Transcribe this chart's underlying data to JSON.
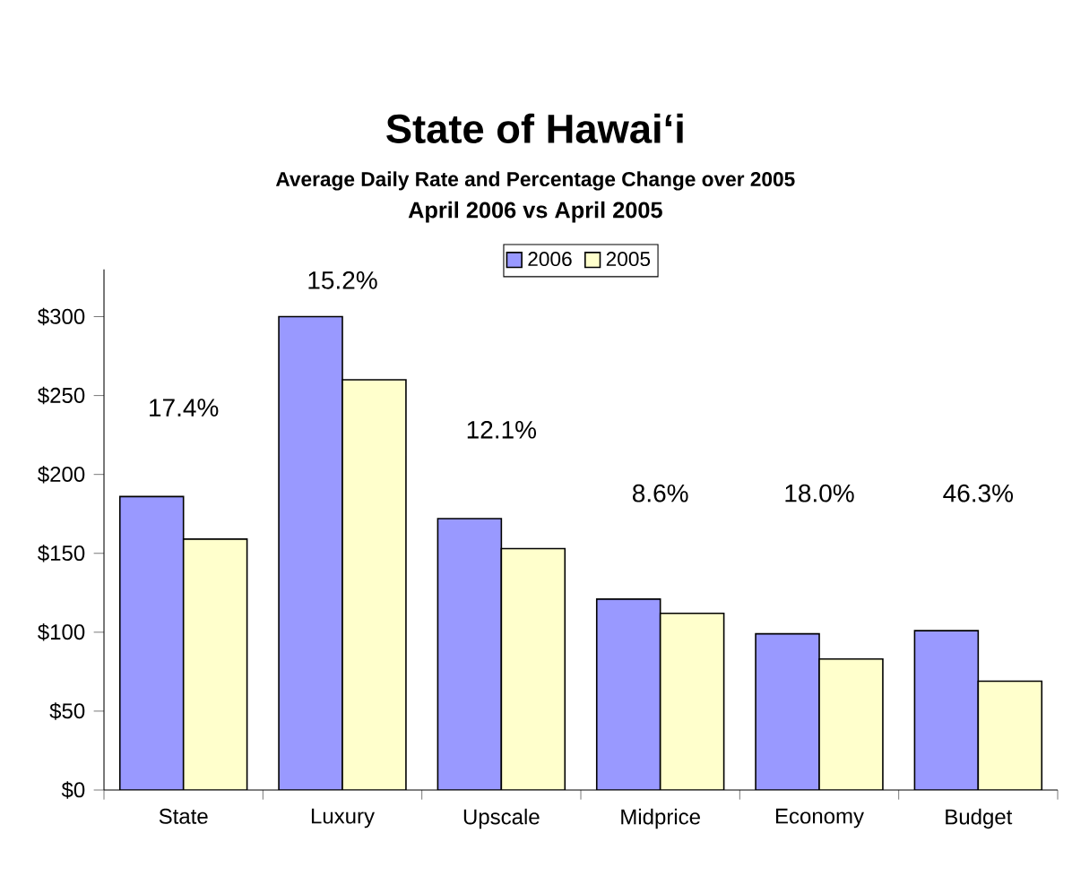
{
  "chart_data": {
    "type": "bar",
    "title": "State of Hawai‘i",
    "subtitle": "Average Daily Rate and Percentage Change over 2005",
    "categories": [
      "State",
      "Luxury",
      "Upscale",
      "Midprice",
      "Economy",
      "Budget"
    ],
    "series": [
      {
        "name": "2006",
        "color": "#9999ff",
        "values": [
          186,
          300,
          172,
          121,
          99,
          101
        ]
      },
      {
        "name": "2005",
        "color": "#ffffcc",
        "values": [
          159,
          260,
          153,
          112,
          83,
          69
        ]
      }
    ],
    "ylim": [
      0,
      330
    ],
    "yticks": [
      {
        "value": 0,
        "label": "$0"
      },
      {
        "value": 50,
        "label": "$50"
      },
      {
        "value": 100,
        "label": "$100"
      },
      {
        "value": 150,
        "label": "$150"
      },
      {
        "value": 200,
        "label": "$200"
      },
      {
        "value": 250,
        "label": "$250"
      },
      {
        "value": 300,
        "label": "$300"
      }
    ],
    "legend": "top",
    "grid": false,
    "annotations": [
      "April 2006 vs April 2005",
      "17.4%",
      "15.2%",
      "12.1%",
      "8.6%",
      "18.0%",
      "46.3%"
    ]
  }
}
